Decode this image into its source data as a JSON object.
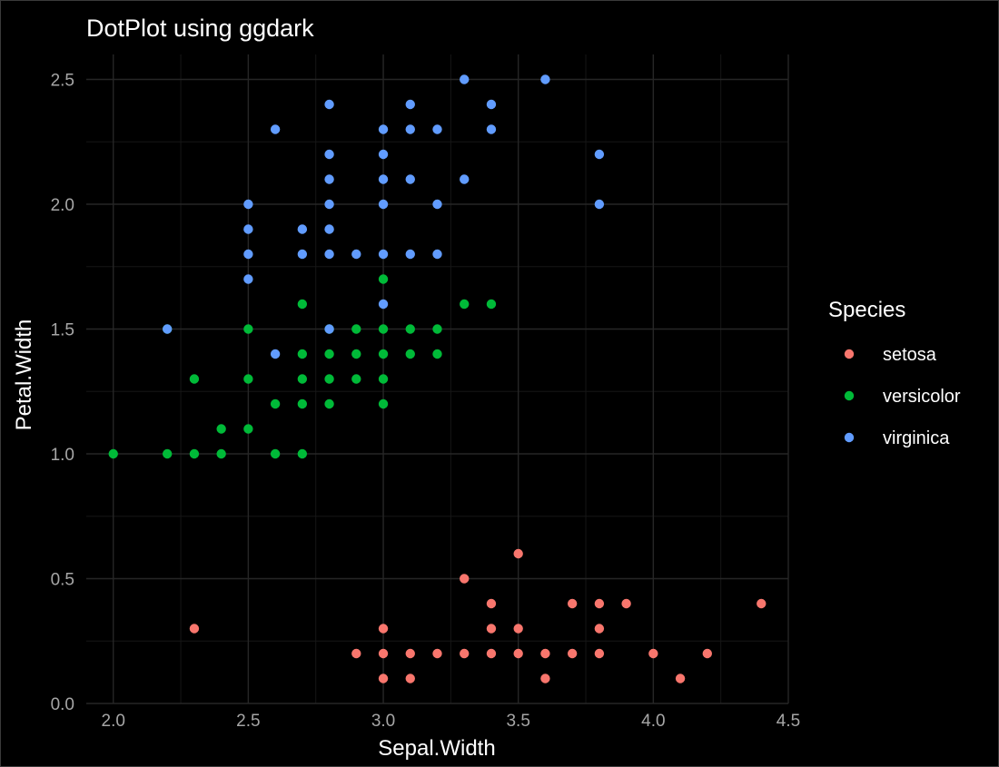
{
  "chart_data": {
    "type": "scatter",
    "title": "DotPlot using ggdark",
    "xlabel": "Sepal.Width",
    "ylabel": "Petal.Width",
    "xlim": [
      1.9,
      4.5
    ],
    "ylim": [
      0,
      2.6
    ],
    "x_ticks": [
      "2.0",
      "2.5",
      "3.0",
      "3.5",
      "4.0",
      "4.5"
    ],
    "y_ticks": [
      "0.0",
      "0.5",
      "1.0",
      "1.5",
      "2.0",
      "2.5"
    ],
    "grid": true,
    "legend": {
      "title": "Species",
      "position": "right"
    },
    "series": [
      {
        "name": "setosa",
        "color": "#F8766D",
        "points": [
          [
            2.3,
            0.3
          ],
          [
            2.9,
            0.2
          ],
          [
            3.0,
            0.3
          ],
          [
            3.0,
            0.2
          ],
          [
            3.0,
            0.1
          ],
          [
            3.1,
            0.2
          ],
          [
            3.1,
            0.1
          ],
          [
            3.2,
            0.2
          ],
          [
            3.3,
            0.5
          ],
          [
            3.3,
            0.2
          ],
          [
            3.4,
            0.4
          ],
          [
            3.4,
            0.3
          ],
          [
            3.4,
            0.2
          ],
          [
            3.5,
            0.6
          ],
          [
            3.5,
            0.3
          ],
          [
            3.5,
            0.2
          ],
          [
            3.6,
            0.2
          ],
          [
            3.6,
            0.1
          ],
          [
            3.7,
            0.4
          ],
          [
            3.7,
            0.2
          ],
          [
            3.8,
            0.4
          ],
          [
            3.8,
            0.3
          ],
          [
            3.8,
            0.2
          ],
          [
            3.9,
            0.4
          ],
          [
            4.0,
            0.2
          ],
          [
            4.1,
            0.1
          ],
          [
            4.2,
            0.2
          ],
          [
            4.4,
            0.4
          ]
        ]
      },
      {
        "name": "versicolor",
        "color": "#00BA38",
        "points": [
          [
            2.0,
            1.0
          ],
          [
            2.2,
            1.0
          ],
          [
            2.2,
            1.5
          ],
          [
            2.3,
            1.3
          ],
          [
            2.3,
            1.0
          ],
          [
            2.4,
            1.1
          ],
          [
            2.4,
            1.0
          ],
          [
            2.5,
            1.5
          ],
          [
            2.5,
            1.3
          ],
          [
            2.5,
            1.1
          ],
          [
            2.6,
            1.2
          ],
          [
            2.6,
            1.0
          ],
          [
            2.7,
            1.6
          ],
          [
            2.7,
            1.4
          ],
          [
            2.7,
            1.3
          ],
          [
            2.7,
            1.2
          ],
          [
            2.7,
            1.0
          ],
          [
            2.8,
            1.5
          ],
          [
            2.8,
            1.4
          ],
          [
            2.8,
            1.3
          ],
          [
            2.8,
            1.2
          ],
          [
            2.9,
            1.5
          ],
          [
            2.9,
            1.4
          ],
          [
            2.9,
            1.3
          ],
          [
            3.0,
            1.7
          ],
          [
            3.0,
            1.5
          ],
          [
            3.0,
            1.4
          ],
          [
            3.0,
            1.3
          ],
          [
            3.0,
            1.2
          ],
          [
            3.1,
            1.5
          ],
          [
            3.1,
            1.4
          ],
          [
            3.2,
            1.5
          ],
          [
            3.2,
            1.4
          ],
          [
            3.3,
            1.6
          ],
          [
            3.4,
            1.6
          ]
        ]
      },
      {
        "name": "virginica",
        "color": "#619CFF",
        "points": [
          [
            2.2,
            1.5
          ],
          [
            2.5,
            2.0
          ],
          [
            2.5,
            1.9
          ],
          [
            2.5,
            1.8
          ],
          [
            2.5,
            1.7
          ],
          [
            2.6,
            2.3
          ],
          [
            2.6,
            1.4
          ],
          [
            2.7,
            1.9
          ],
          [
            2.7,
            1.8
          ],
          [
            2.8,
            2.4
          ],
          [
            2.8,
            2.2
          ],
          [
            2.8,
            2.1
          ],
          [
            2.8,
            2.0
          ],
          [
            2.8,
            1.9
          ],
          [
            2.8,
            1.8
          ],
          [
            2.8,
            1.5
          ],
          [
            2.9,
            1.8
          ],
          [
            3.0,
            2.3
          ],
          [
            3.0,
            2.2
          ],
          [
            3.0,
            2.1
          ],
          [
            3.0,
            2.0
          ],
          [
            3.0,
            1.8
          ],
          [
            3.0,
            1.6
          ],
          [
            3.1,
            2.4
          ],
          [
            3.1,
            2.3
          ],
          [
            3.1,
            2.1
          ],
          [
            3.1,
            1.8
          ],
          [
            3.2,
            2.3
          ],
          [
            3.2,
            2.0
          ],
          [
            3.2,
            1.8
          ],
          [
            3.3,
            2.5
          ],
          [
            3.3,
            2.1
          ],
          [
            3.4,
            2.4
          ],
          [
            3.4,
            2.3
          ],
          [
            3.6,
            2.5
          ],
          [
            3.8,
            2.2
          ],
          [
            3.8,
            2.0
          ]
        ]
      }
    ]
  }
}
